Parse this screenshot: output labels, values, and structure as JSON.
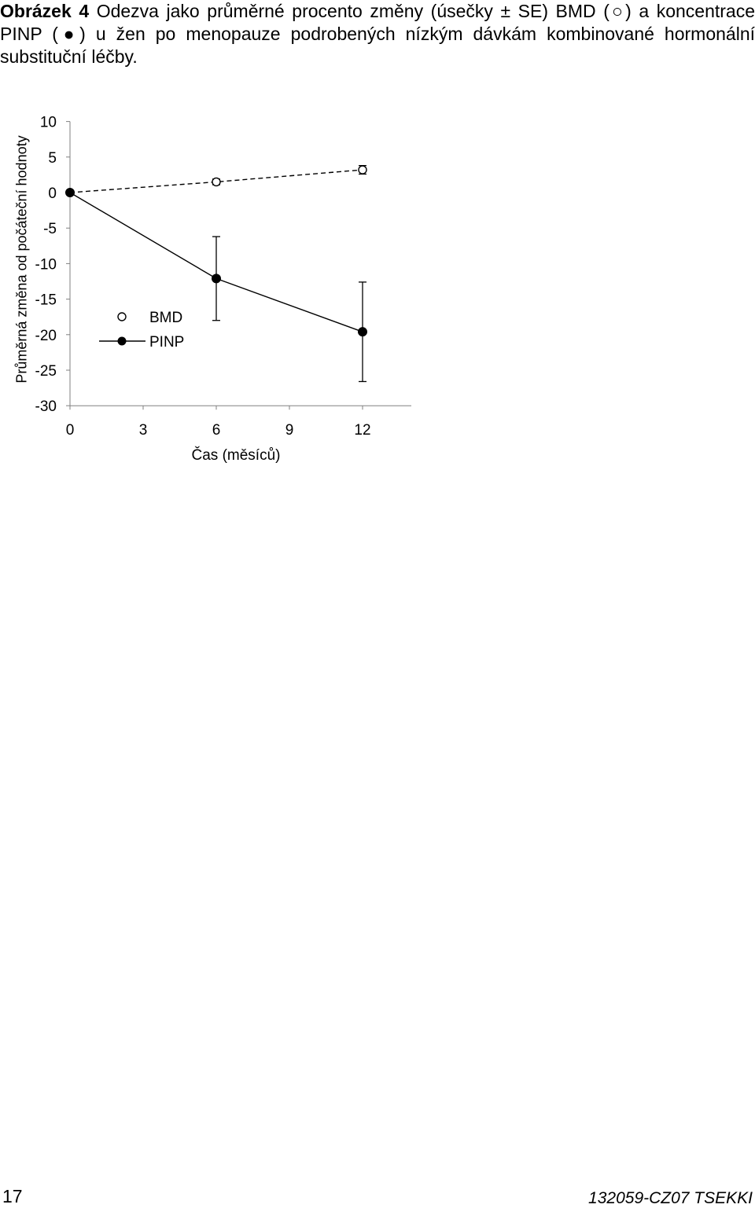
{
  "caption": {
    "label": "Obrázek 4",
    "text": "Odezva jako průměrné procento změny (úsečky ± SE) BMD (○) a koncentrace PINP (●) u žen po menopauze podrobených nízkým dávkám kombinované hormonální substituční léčby."
  },
  "footer": {
    "page_number": "17",
    "doc_code": "132059-CZ07 TSEKKI"
  },
  "chart_data": {
    "type": "line",
    "title": "",
    "xlabel": "Čas (měsíců)",
    "ylabel": "Průměrná změna od počáteční hodnoty",
    "xlim": [
      0,
      14
    ],
    "ylim": [
      -30,
      10
    ],
    "xticks": [
      0,
      3,
      6,
      9,
      12
    ],
    "yticks": [
      10,
      5,
      0,
      -5,
      -10,
      -15,
      -20,
      -25,
      -30
    ],
    "grid": false,
    "legend_position": "center-left",
    "series": [
      {
        "name": "BMD",
        "marker": "open-circle",
        "line_style": "dashed",
        "x": [
          0,
          6,
          12
        ],
        "y": [
          0,
          1.5,
          3.2
        ],
        "se": [
          0,
          0.4,
          0.6
        ]
      },
      {
        "name": "PINP",
        "marker": "filled-circle",
        "line_style": "solid",
        "x": [
          0,
          6,
          12
        ],
        "y": [
          0,
          -12.1,
          -19.6
        ],
        "se": [
          0,
          5.9,
          7.0
        ]
      }
    ]
  }
}
